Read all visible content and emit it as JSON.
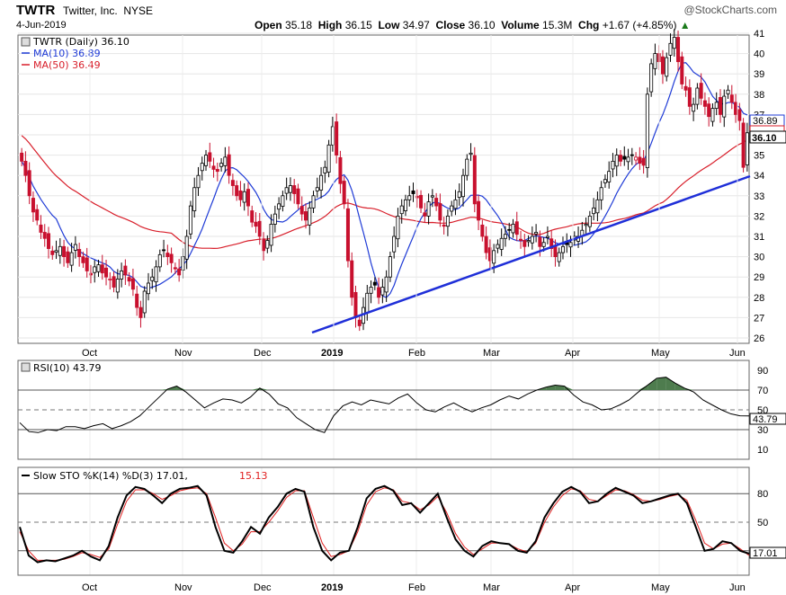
{
  "header": {
    "symbol": "TWTR",
    "company": "Twitter, Inc.",
    "exchange": "NYSE",
    "date": "4-Jun-2019",
    "brand": "@StockCharts.com",
    "open_label": "Open",
    "open": "35.18",
    "high_label": "High",
    "high": "36.15",
    "low_label": "Low",
    "low": "34.97",
    "close_label": "Close",
    "close": "36.10",
    "volume_label": "Volume",
    "volume": "15.3M",
    "chg_label": "Chg",
    "chg": "+1.67 (+4.85%)",
    "up_arrow": "▲"
  },
  "price_panel": {
    "legend_symbol": "TWTR (Daily) 36.10",
    "legend_ma10": "MA(10) 36.89",
    "legend_ma50": "MA(50) 36.49",
    "ma10_label": "36.89",
    "ma50_label": "36.49",
    "close_label": "36.10",
    "colors": {
      "up": "#000000",
      "down": "#c8102e",
      "ma10": "#1f3bd6",
      "ma50": "#d81e2a",
      "trend": "#1f2fd8"
    }
  },
  "rsi_panel": {
    "legend": "RSI(10) 43.79",
    "value_label": "43.79",
    "ticks": [
      "90",
      "70",
      "50",
      "30",
      "10"
    ],
    "fill_color": "#4e7c4e"
  },
  "sto_panel": {
    "legend_prefix": "Slow STO %K(14) %D(3) 17.01,",
    "legend_d": "15.13",
    "value_label": "17.01",
    "ticks": [
      "80",
      "50",
      "20"
    ]
  },
  "x_labels": [
    "Oct",
    "Nov",
    "Dec",
    "2019",
    "Feb",
    "Mar",
    "Apr",
    "May",
    "Jun"
  ],
  "chart_data": [
    {
      "type": "candlestick",
      "title": "TWTR (Daily) 36.10",
      "ylim": [
        26,
        41
      ],
      "y_ticks": [
        26,
        27,
        28,
        29,
        30,
        31,
        32,
        33,
        34,
        35,
        36,
        37,
        38,
        39,
        40,
        41
      ],
      "x_range": [
        "2018-09-06",
        "2019-06-04"
      ],
      "x_ticks": [
        "Oct",
        "Nov",
        "Dec",
        "2019",
        "Feb",
        "Mar",
        "Apr",
        "May",
        "Jun"
      ],
      "close_series": [
        34.7,
        34.0,
        33.0,
        32.2,
        31.8,
        31.2,
        30.9,
        30.4,
        30.1,
        30.3,
        30.5,
        30.0,
        29.7,
        30.2,
        30.6,
        30.0,
        29.7,
        29.3,
        29.1,
        29.5,
        29.6,
        29.2,
        29.0,
        28.9,
        28.5,
        28.9,
        29.3,
        29.1,
        28.8,
        28.4,
        27.5,
        27.0,
        28.3,
        28.7,
        29.0,
        29.5,
        30.1,
        30.3,
        30.0,
        29.7,
        29.4,
        29.1,
        30.0,
        31.0,
        32.5,
        33.4,
        34.0,
        34.6,
        35.0,
        34.7,
        34.3,
        34.2,
        34.6,
        34.9,
        34.0,
        33.5,
        33.0,
        32.8,
        33.2,
        32.5,
        31.7,
        31.5,
        31.0,
        30.3,
        30.8,
        31.6,
        32.1,
        32.6,
        33.0,
        33.4,
        33.5,
        33.1,
        32.6,
        32.1,
        31.8,
        32.4,
        33.0,
        33.4,
        34.0,
        34.4,
        35.5,
        36.4,
        35.0,
        33.6,
        32.6,
        29.8,
        28.0,
        27.0,
        26.6,
        27.5,
        28.2,
        28.5,
        28.6,
        28.0,
        28.5,
        29.0,
        30.0,
        31.0,
        32.0,
        32.5,
        32.8,
        33.0,
        33.1,
        32.9,
        32.4,
        32.0,
        32.7,
        33.0,
        32.5,
        31.8,
        31.5,
        32.0,
        32.5,
        32.8,
        33.2,
        34.0,
        34.8,
        35.1,
        32.6,
        31.8,
        31.0,
        30.2,
        29.8,
        30.3,
        30.6,
        30.9,
        31.1,
        31.3,
        31.6,
        31.1,
        30.8,
        30.5,
        30.8,
        31.0,
        31.2,
        30.5,
        30.7,
        31.0,
        30.4,
        30.0,
        30.2,
        30.5,
        30.6,
        30.7,
        31.0,
        31.0,
        31.3,
        31.6,
        32.0,
        32.4,
        32.8,
        33.4,
        33.8,
        34.2,
        34.7,
        35.0,
        34.7,
        34.8,
        34.9,
        35.0,
        34.9,
        34.6,
        34.5,
        38.0,
        39.5,
        40.0,
        39.6,
        39.0,
        39.8,
        40.5,
        40.8,
        39.6,
        38.5,
        38.2,
        37.4,
        37.5,
        38.3,
        37.8,
        37.4,
        36.9,
        37.3,
        37.6,
        37.0,
        37.9,
        38.2,
        37.6,
        37.0,
        36.7,
        34.4,
        36.1
      ],
      "ma10_end": 36.89,
      "ma50_end": 36.49,
      "trendline": [
        {
          "date": "2018-12-24",
          "value": 26.3
        },
        {
          "date": "2019-06-04",
          "value": 34.3
        }
      ]
    },
    {
      "type": "line",
      "title": "RSI(10) 43.79",
      "ylim": [
        0,
        100
      ],
      "reference_lines": [
        70,
        50,
        30
      ],
      "series": [
        {
          "name": "RSI(10)",
          "values": [
            37,
            28,
            27,
            30,
            29,
            33,
            33,
            31,
            34,
            36,
            31,
            34,
            38,
            44,
            53,
            62,
            71,
            74,
            68,
            60,
            52,
            57,
            61,
            60,
            57,
            63,
            72,
            66,
            56,
            52,
            42,
            36,
            30,
            27,
            44,
            54,
            58,
            55,
            60,
            58,
            56,
            62,
            66,
            57,
            50,
            48,
            53,
            57,
            52,
            48,
            52,
            55,
            60,
            64,
            61,
            66,
            70,
            73,
            75,
            74,
            65,
            58,
            55,
            50,
            51,
            55,
            60,
            68,
            75,
            82,
            83,
            77,
            72,
            68,
            60,
            55,
            50,
            46,
            44,
            43.79
          ]
        }
      ]
    },
    {
      "type": "line",
      "title": "Slow STO %K(14) %D(3) 17.01, 15.13",
      "ylim": [
        0,
        100
      ],
      "reference_lines": [
        80,
        50,
        20
      ],
      "series": [
        {
          "name": "%K(14)",
          "values": [
            45,
            15,
            8,
            10,
            9,
            12,
            15,
            20,
            14,
            10,
            25,
            55,
            78,
            87,
            85,
            78,
            70,
            80,
            85,
            86,
            88,
            78,
            45,
            20,
            18,
            30,
            45,
            38,
            55,
            66,
            80,
            85,
            82,
            45,
            20,
            10,
            18,
            20,
            45,
            75,
            85,
            88,
            83,
            68,
            70,
            60,
            70,
            80,
            55,
            32,
            20,
            14,
            25,
            30,
            28,
            27,
            20,
            18,
            30,
            55,
            70,
            82,
            87,
            82,
            70,
            72,
            80,
            86,
            82,
            78,
            70,
            72,
            75,
            78,
            80,
            70,
            45,
            20,
            22,
            30,
            28,
            20,
            17.01
          ]
        },
        {
          "name": "%D(3)",
          "values": [
            40,
            20,
            10,
            10,
            10,
            11,
            14,
            18,
            16,
            13,
            22,
            48,
            72,
            84,
            84,
            80,
            74,
            78,
            83,
            85,
            86,
            80,
            55,
            28,
            20,
            27,
            40,
            40,
            50,
            62,
            76,
            83,
            83,
            55,
            28,
            14,
            16,
            20,
            40,
            68,
            82,
            86,
            84,
            72,
            70,
            63,
            68,
            77,
            60,
            38,
            24,
            16,
            22,
            28,
            28,
            27,
            22,
            19,
            28,
            50,
            66,
            78,
            85,
            83,
            74,
            72,
            78,
            84,
            83,
            79,
            73,
            72,
            74,
            77,
            79,
            73,
            52,
            28,
            22,
            27,
            28,
            22,
            15.13
          ]
        }
      ]
    }
  ]
}
